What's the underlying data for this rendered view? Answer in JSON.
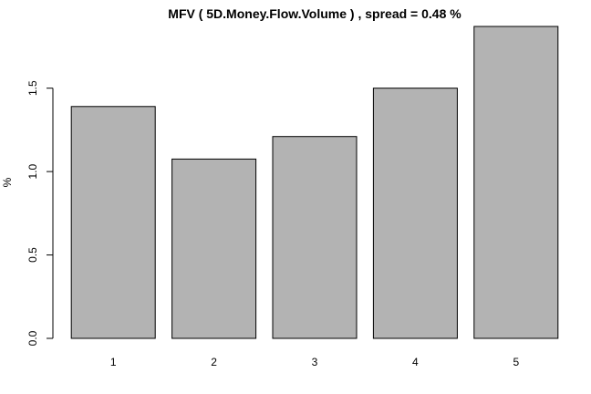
{
  "chart_data": {
    "type": "bar",
    "title": "MFV ( 5D.Money.Flow.Volume ) , spread = 0.48 %",
    "xlabel": "",
    "ylabel": "%",
    "categories": [
      "1",
      "2",
      "3",
      "4",
      "5"
    ],
    "values": [
      1.39,
      1.075,
      1.21,
      1.5,
      1.87
    ],
    "ylim": [
      0,
      1.87
    ],
    "yticks": [
      0.0,
      0.5,
      1.0,
      1.5
    ],
    "ytick_labels": [
      "0.0",
      "0.5",
      "1.0",
      "1.5"
    ],
    "grid": false,
    "bar_color": "#b3b3b3"
  }
}
